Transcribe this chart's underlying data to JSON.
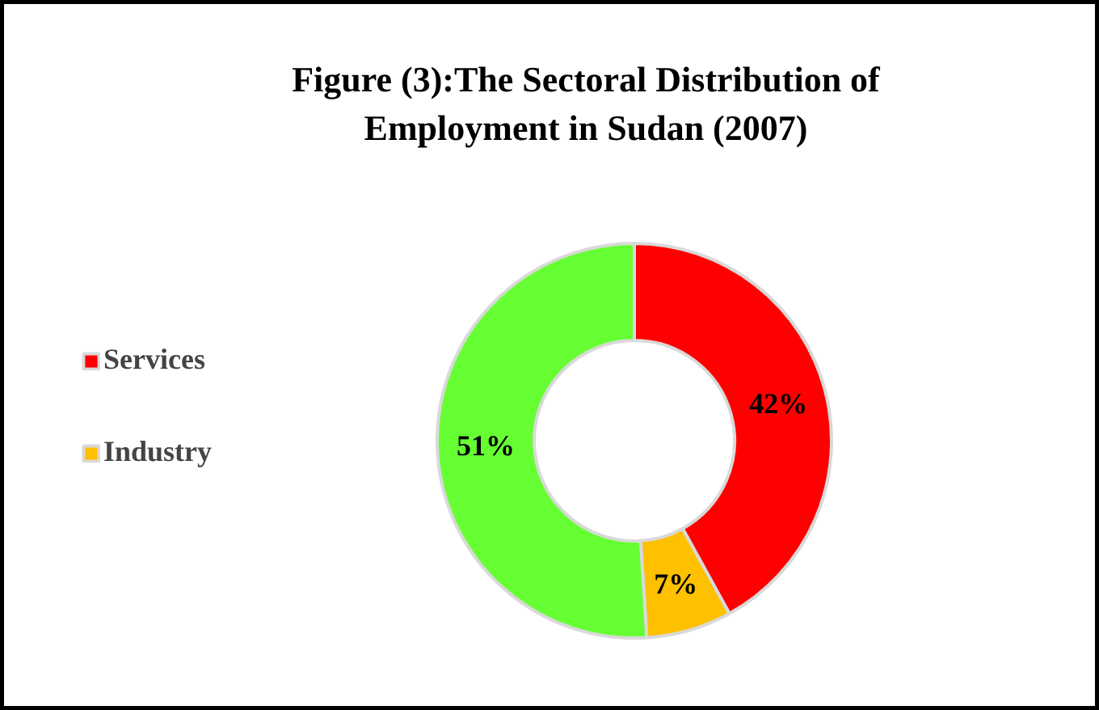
{
  "chart_data": {
    "type": "donut",
    "title": "Figure (3):The Sectoral Distribution of\nEmployment in Sudan (2007)",
    "categories": [
      "Services",
      "Industry",
      null
    ],
    "values": [
      42,
      7,
      51
    ],
    "colors": [
      "#ff0000",
      "#ffc000",
      "#66ff33"
    ],
    "value_labels": [
      "42%",
      "7%",
      "51%"
    ],
    "legend": "left"
  }
}
